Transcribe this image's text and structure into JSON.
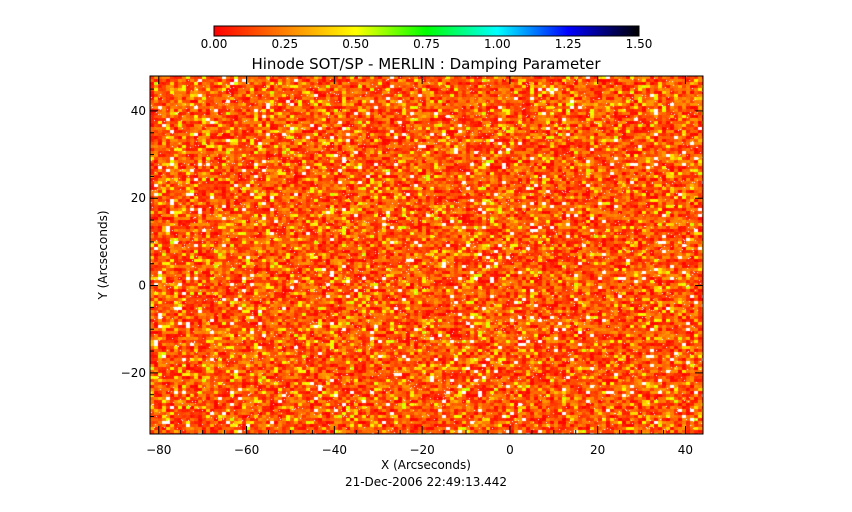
{
  "chart_data": {
    "type": "heatmap",
    "title": "Hinode SOT/SP - MERLIN : Damping Parameter",
    "xlabel": "X (Arcseconds)",
    "ylabel": "Y (Arcseconds)",
    "timestamp": "21-Dec-2006 22:49:13.442",
    "xlim": [
      -82,
      44
    ],
    "ylim": [
      -34,
      48
    ],
    "x_ticks": [
      -80,
      -60,
      -40,
      -20,
      0,
      20,
      40
    ],
    "y_ticks": [
      -20,
      0,
      20,
      40
    ],
    "colorbar": {
      "range": [
        0.0,
        1.5
      ],
      "ticks": [
        "0.00",
        "0.25",
        "0.50",
        "0.75",
        "1.00",
        "1.25",
        "1.50"
      ],
      "stops": [
        "#ff0000",
        "#ff8000",
        "#ffff00",
        "#00ff00",
        "#00ffff",
        "#0000ff",
        "#000000"
      ]
    },
    "field_summary": {
      "dominant_value_range": [
        0.0,
        0.3
      ],
      "occasional_value_range": [
        0.35,
        0.55
      ],
      "missing_values_color": "#ffffff"
    }
  }
}
